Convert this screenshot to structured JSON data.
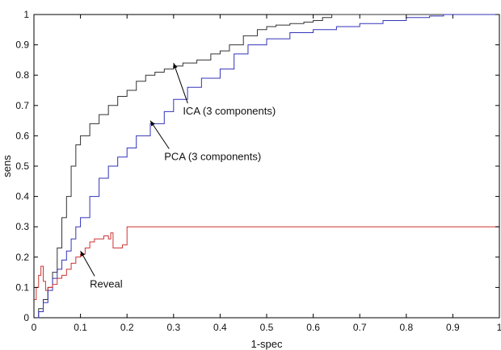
{
  "chart_data": {
    "type": "line",
    "title": "",
    "xlabel": "1-spec",
    "ylabel": "sens",
    "xlim": [
      0,
      1
    ],
    "ylim": [
      0,
      1
    ],
    "grid": false,
    "xticks": [
      "0",
      "0.1",
      "0.2",
      "0.3",
      "0.4",
      "0.5",
      "0.6",
      "0.7",
      "0.8",
      "0.9",
      "1"
    ],
    "yticks": [
      "0",
      "0.1",
      "0.2",
      "0.3",
      "0.4",
      "0.5",
      "0.6",
      "0.7",
      "0.8",
      "0.9",
      "1"
    ],
    "series": [
      {
        "key": "ica",
        "color": "#333333",
        "x": [
          0,
          0.01,
          0.02,
          0.03,
          0.04,
          0.05,
          0.06,
          0.07,
          0.08,
          0.09,
          0.1,
          0.12,
          0.14,
          0.16,
          0.18,
          0.2,
          0.22,
          0.24,
          0.26,
          0.28,
          0.3,
          0.32,
          0.35,
          0.38,
          0.4,
          0.42,
          0.45,
          0.48,
          0.5,
          0.52,
          0.55,
          0.58,
          0.6,
          0.62,
          0.64,
          1.0
        ],
        "y": [
          0,
          0.03,
          0.06,
          0.1,
          0.15,
          0.23,
          0.33,
          0.4,
          0.5,
          0.57,
          0.6,
          0.64,
          0.67,
          0.7,
          0.73,
          0.75,
          0.78,
          0.8,
          0.81,
          0.82,
          0.83,
          0.84,
          0.85,
          0.87,
          0.88,
          0.9,
          0.93,
          0.95,
          0.96,
          0.965,
          0.97,
          0.975,
          0.98,
          0.99,
          1.0,
          1.0
        ]
      },
      {
        "key": "pca",
        "color": "#3333bb",
        "x": [
          0,
          0.01,
          0.02,
          0.03,
          0.04,
          0.05,
          0.06,
          0.07,
          0.08,
          0.09,
          0.1,
          0.12,
          0.14,
          0.16,
          0.18,
          0.2,
          0.22,
          0.25,
          0.28,
          0.3,
          0.33,
          0.36,
          0.4,
          0.43,
          0.46,
          0.5,
          0.55,
          0.6,
          0.65,
          0.7,
          0.75,
          0.8,
          0.85,
          0.88,
          0.9,
          1.0
        ],
        "y": [
          0,
          0.02,
          0.05,
          0.09,
          0.13,
          0.16,
          0.19,
          0.22,
          0.26,
          0.3,
          0.33,
          0.4,
          0.46,
          0.5,
          0.53,
          0.56,
          0.6,
          0.64,
          0.68,
          0.72,
          0.76,
          0.79,
          0.82,
          0.87,
          0.9,
          0.92,
          0.94,
          0.95,
          0.96,
          0.97,
          0.98,
          0.99,
          0.995,
          1.0,
          1.0,
          1.0
        ]
      },
      {
        "key": "reveal",
        "color": "#cc3333",
        "x": [
          0,
          0.005,
          0.01,
          0.015,
          0.02,
          0.025,
          0.03,
          0.04,
          0.05,
          0.06,
          0.07,
          0.08,
          0.09,
          0.1,
          0.11,
          0.12,
          0.13,
          0.14,
          0.15,
          0.16,
          0.165,
          0.17,
          0.175,
          0.18,
          0.19,
          0.2,
          1.0
        ],
        "y": [
          0.06,
          0.1,
          0.14,
          0.17,
          0.12,
          0.09,
          0.1,
          0.11,
          0.13,
          0.14,
          0.16,
          0.18,
          0.2,
          0.21,
          0.23,
          0.25,
          0.26,
          0.26,
          0.27,
          0.26,
          0.28,
          0.23,
          0.23,
          0.23,
          0.24,
          0.3,
          0.3
        ]
      }
    ],
    "annotations": [
      {
        "key": "ica",
        "text": "ICA (3 components)",
        "point": [
          0.3,
          0.84
        ],
        "label": [
          0.32,
          0.67
        ]
      },
      {
        "key": "pca",
        "text": "PCA (3 components)",
        "point": [
          0.25,
          0.65
        ],
        "label": [
          0.28,
          0.52
        ]
      },
      {
        "key": "reveal",
        "text": "Reveal",
        "point": [
          0.1,
          0.22
        ],
        "label": [
          0.12,
          0.1
        ]
      }
    ]
  }
}
